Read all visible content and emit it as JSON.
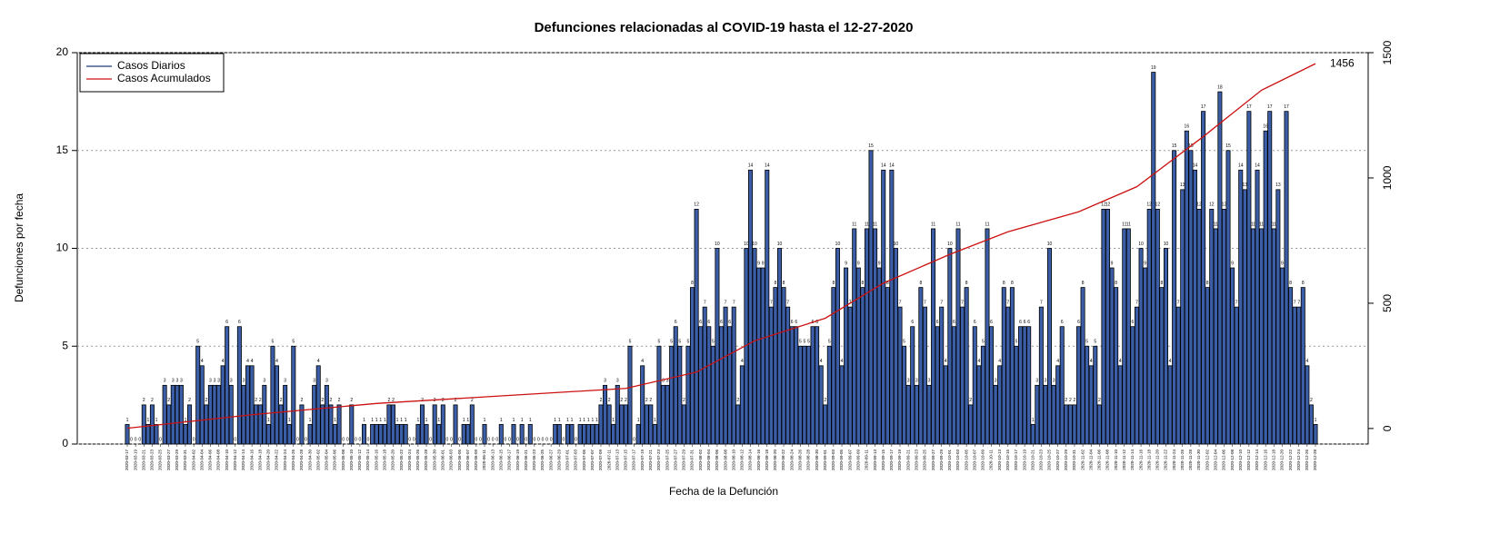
{
  "chart_data": {
    "type": "bar",
    "title": "Defunciones relacionadas al COVID-19 hasta el 12-27-2020",
    "y_label": "Defunciones por fecha",
    "x_label": "Fecha de la Defunción",
    "categories": [
      "2020-03-17",
      null,
      "2020-03-19",
      null,
      "2020-03-21",
      null,
      "2020-03-23",
      null,
      "2020-03-25",
      null,
      "2020-03-27",
      null,
      "2020-03-29",
      null,
      "2020-03-31",
      null,
      "2020-04-02",
      null,
      "2020-04-04",
      null,
      "2020-04-06",
      null,
      "2020-04-08",
      null,
      "2020-04-10",
      null,
      "2020-04-12",
      null,
      "2020-04-14",
      null,
      "2020-04-16",
      null,
      "2020-04-18",
      null,
      "2020-04-20",
      null,
      "2020-04-22",
      null,
      "2020-04-24",
      null,
      "2020-04-26",
      null,
      "2020-04-28",
      null,
      "2020-04-30",
      null,
      "2020-05-02",
      null,
      "2020-05-04",
      null,
      "2020-05-06",
      null,
      "2020-05-08",
      null,
      "2020-05-10",
      null,
      "2020-05-12",
      null,
      "2020-05-14",
      null,
      "2020-05-16",
      null,
      "2020-05-18",
      null,
      "2020-05-20",
      null,
      "2020-05-22",
      null,
      "2020-05-24",
      null,
      "2020-05-26",
      null,
      "2020-05-28",
      null,
      "2020-05-30",
      null,
      "2020-06-01",
      null,
      "2020-06-03",
      null,
      "2020-06-05",
      null,
      "2020-06-07",
      null,
      "2020-06-09",
      null,
      "2020-06-11",
      null,
      "2020-06-13",
      null,
      "2020-06-15",
      null,
      "2020-06-17",
      null,
      "2020-06-19",
      null,
      "2020-06-21",
      null,
      "2020-06-23",
      null,
      "2020-06-25",
      null,
      "2020-06-27",
      null,
      "2020-06-29",
      null,
      "2020-07-01",
      null,
      "2020-07-03",
      null,
      "2020-07-05",
      null,
      "2020-07-07",
      null,
      "2020-07-09",
      null,
      "2020-07-11",
      null,
      "2020-07-13",
      null,
      "2020-07-15",
      null,
      "2020-07-17",
      null,
      "2020-07-19",
      null,
      "2020-07-21",
      null,
      "2020-07-23",
      null,
      "2020-07-25",
      null,
      "2020-07-27",
      null,
      "2020-07-29",
      null,
      "2020-07-31",
      null,
      "2020-08-02",
      null,
      "2020-08-04",
      null,
      "2020-08-06",
      null,
      "2020-08-08",
      null,
      "2020-08-10",
      null,
      "2020-08-12",
      null,
      "2020-08-14",
      null,
      "2020-08-16",
      null,
      "2020-08-18",
      null,
      "2020-08-20",
      null,
      "2020-08-22",
      null,
      "2020-08-24",
      null,
      "2020-08-26",
      null,
      "2020-08-28",
      null,
      "2020-08-30",
      null,
      "2020-09-01",
      null,
      "2020-09-03",
      null,
      "2020-09-05",
      null,
      "2020-09-07",
      null,
      "2020-09-09",
      null,
      "2020-09-11",
      null,
      "2020-09-13",
      null,
      "2020-09-15",
      null,
      "2020-09-17",
      null,
      "2020-09-19",
      null,
      "2020-09-21",
      null,
      "2020-09-23",
      null,
      "2020-09-25",
      null,
      "2020-09-27",
      null,
      "2020-09-29",
      null,
      "2020-10-01",
      null,
      "2020-10-03",
      null,
      "2020-10-05",
      null,
      "2020-10-07",
      null,
      "2020-10-09",
      null,
      "2020-10-11",
      null,
      "2020-10-13",
      null,
      "2020-10-15",
      null,
      "2020-10-17",
      null,
      "2020-10-19",
      null,
      "2020-10-21",
      null,
      "2020-10-23",
      null,
      "2020-10-25",
      null,
      "2020-10-27",
      null,
      "2020-10-29",
      null,
      "2020-10-31",
      null,
      "2020-11-02",
      null,
      "2020-11-04",
      null,
      "2020-11-06",
      null,
      "2020-11-08",
      null,
      "2020-11-10",
      null,
      "2020-11-12",
      null,
      "2020-11-14",
      null,
      "2020-11-16",
      null,
      "2020-11-18",
      null,
      "2020-11-20",
      null,
      "2020-11-22",
      null,
      "2020-11-24",
      null,
      "2020-11-26",
      null,
      "2020-11-28",
      null,
      "2020-11-30",
      null,
      "2020-12-02",
      null,
      "2020-12-04",
      null,
      "2020-12-06",
      null,
      "2020-12-08",
      null,
      "2020-12-10",
      null,
      "2020-12-12",
      null,
      "2020-12-14",
      null,
      "2020-12-16",
      null,
      "2020-12-18",
      null,
      "2020-12-20",
      null,
      "2020-12-22",
      null,
      "2020-12-24",
      null,
      "2020-12-26",
      null,
      "2020-12-28"
    ],
    "series": [
      {
        "name": "Casos Diarios",
        "color": "#3b5ea6",
        "legend_color": "#1f3f7a",
        "values": [
          1,
          0,
          0,
          0,
          2,
          1,
          2,
          1,
          0,
          3,
          2,
          3,
          3,
          3,
          1,
          2,
          0,
          5,
          4,
          2,
          3,
          3,
          3,
          4,
          6,
          3,
          0,
          6,
          3,
          4,
          4,
          2,
          2,
          3,
          1,
          5,
          4,
          2,
          3,
          1,
          5,
          0,
          2,
          0,
          1,
          3,
          4,
          2,
          3,
          2,
          1,
          2,
          0,
          0,
          2,
          0,
          0,
          1,
          0,
          1,
          1,
          1,
          1,
          2,
          2,
          1,
          1,
          1,
          0,
          0,
          1,
          2,
          1,
          0,
          2,
          1,
          2,
          0,
          0,
          2,
          0,
          1,
          1,
          2,
          0,
          0,
          1,
          0,
          0,
          0,
          1,
          0,
          0,
          1,
          0,
          1,
          0,
          1,
          0,
          0,
          0,
          0,
          0,
          1,
          1,
          0,
          1,
          1,
          0,
          1,
          1,
          1,
          1,
          1,
          2,
          3,
          2,
          1,
          3,
          2,
          2,
          5,
          0,
          1,
          4,
          2,
          2,
          1,
          5,
          3,
          3,
          5,
          6,
          5,
          2,
          5,
          8,
          12,
          6,
          7,
          6,
          5,
          10,
          6,
          7,
          6,
          7,
          2,
          4,
          10,
          14,
          10,
          9,
          9,
          14,
          7,
          8,
          10,
          8,
          7,
          6,
          6,
          5,
          5,
          5,
          6,
          6,
          4,
          2,
          5,
          8,
          10,
          4,
          9,
          7,
          11,
          9,
          8,
          11,
          15,
          11,
          9,
          14,
          8,
          14,
          10,
          7,
          5,
          3,
          6,
          3,
          8,
          7,
          3,
          11,
          6,
          7,
          4,
          10,
          6,
          11,
          7,
          8,
          2,
          6,
          4,
          5,
          11,
          6,
          3,
          4,
          8,
          7,
          8,
          5,
          6,
          6,
          6,
          1,
          3,
          7,
          3,
          10,
          3,
          4,
          6,
          2,
          2,
          2,
          6,
          8,
          5,
          4,
          5,
          2,
          12,
          12,
          9,
          8,
          4,
          11,
          11,
          6,
          7,
          10,
          9,
          12,
          19,
          12,
          8,
          10,
          4,
          15,
          7,
          13,
          16,
          15,
          14,
          12,
          17,
          8,
          12,
          11,
          18,
          12,
          15,
          9,
          7,
          14,
          13,
          17,
          11,
          14,
          11,
          16,
          17,
          11,
          13,
          9,
          17,
          8,
          7,
          7,
          8,
          4,
          2,
          1
        ]
      },
      {
        "name": "Casos Acumulados",
        "color": "#cc1111",
        "axis": "y2",
        "x": [
          "2020-03-17",
          "2020-04-16",
          "2020-05-16",
          "2020-06-15",
          "2020-07-15",
          "2020-08-01",
          "2020-08-15",
          "2020-09-01",
          "2020-09-15",
          "2020-10-01",
          "2020-10-15",
          "2020-11-01",
          "2020-11-15",
          "2020-12-01",
          "2020-12-15",
          "2020-12-28"
        ],
        "values": [
          1,
          55,
          100,
          130,
          160,
          225,
          350,
          440,
          580,
          695,
          785,
          865,
          965,
          1165,
          1350,
          1456
        ]
      }
    ],
    "ylim": [
      0,
      20
    ],
    "yticks": [
      0,
      5,
      10,
      15,
      20
    ],
    "y2lim": [
      -62,
      1500
    ],
    "y2ticks": [
      0,
      500,
      1000,
      1500
    ],
    "grid": true,
    "legend": "top-left"
  }
}
